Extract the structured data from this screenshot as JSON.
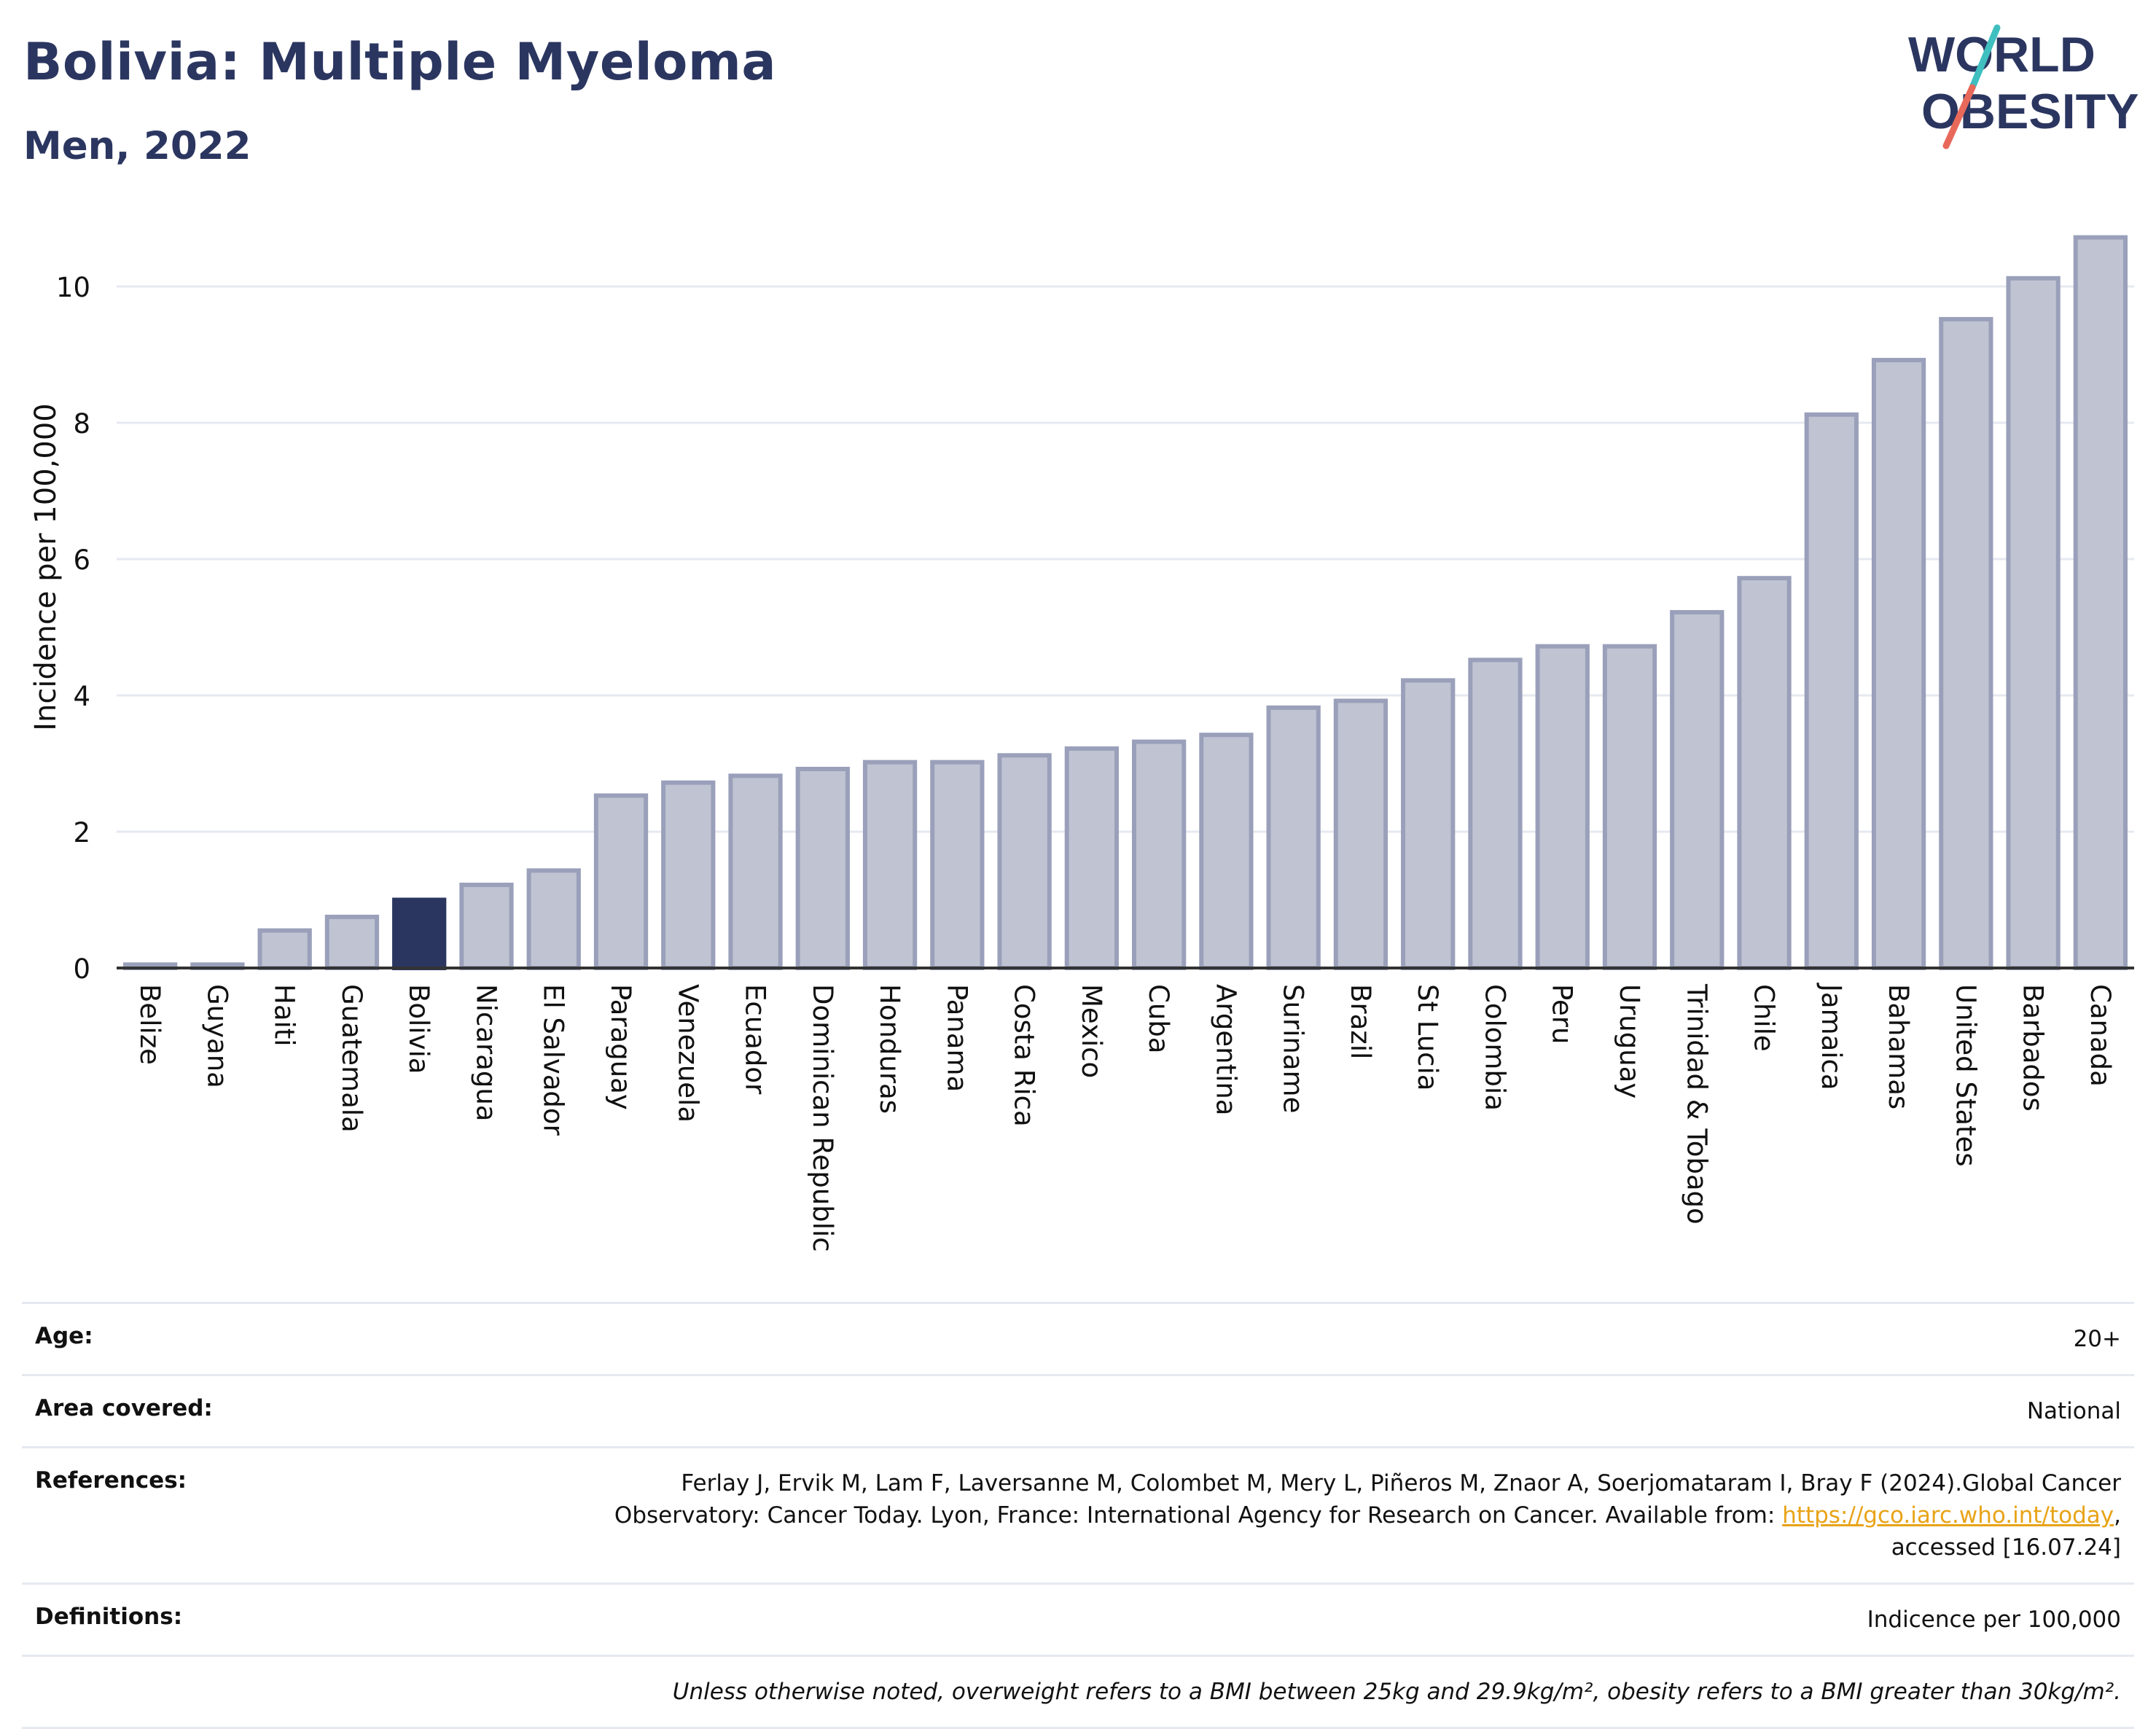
{
  "header": {
    "title": "Bolivia: Multiple Myeloma",
    "subtitle": "Men, 2022"
  },
  "logo": {
    "line1": "WORLD",
    "line2": "OBESITY",
    "colors": {
      "text": "#2b3660",
      "slash_top": "#3fbfbf",
      "slash_bottom": "#e8695a"
    }
  },
  "colors": {
    "highlight": "#2b3660",
    "bar_fill": "#c0c4d2",
    "bar_stroke": "#9aa0ba",
    "grid": "#e6e9f0",
    "axis": "#333333",
    "link": "#e8a317"
  },
  "chart_data": {
    "type": "bar",
    "ylabel": "Incidence per 100,000",
    "ylim": [
      0,
      11
    ],
    "yticks": [
      0,
      2,
      4,
      6,
      8,
      10
    ],
    "grid": true,
    "highlight": "Bolivia",
    "categories": [
      "Belize",
      "Guyana",
      "Haiti",
      "Guatemala",
      "Bolivia",
      "Nicaragua",
      "El Salvador",
      "Paraguay",
      "Venezuela",
      "Ecuador",
      "Dominican Republic",
      "Honduras",
      "Panama",
      "Costa Rica",
      "Mexico",
      "Cuba",
      "Argentina",
      "Suriname",
      "Brazil",
      "St Lucia",
      "Colombia",
      "Peru",
      "Uruguay",
      "Trinidad & Tobago",
      "Chile",
      "Jamaica",
      "Bahamas",
      "United States",
      "Barbados",
      "Canada"
    ],
    "values": [
      0.05,
      0.05,
      0.55,
      0.75,
      1.0,
      1.22,
      1.43,
      2.53,
      2.72,
      2.82,
      2.92,
      3.02,
      3.02,
      3.12,
      3.22,
      3.32,
      3.42,
      3.82,
      3.92,
      4.22,
      4.52,
      4.72,
      4.72,
      5.22,
      5.72,
      8.12,
      8.92,
      9.52,
      10.12,
      10.72
    ]
  },
  "info": {
    "age_label": "Age:",
    "age_value": "20+",
    "area_label": "Area covered:",
    "area_value": "National",
    "references_label": "References:",
    "references_line1": "Ferlay J, Ervik M, Lam F, Laversanne M, Colombet M, Mery L, Piñeros M, Znaor A, Soerjomataram I, Bray F (2024).Global Cancer",
    "references_line2": "Observatory: Cancer Today. Lyon, France: International Agency for Research on Cancer. Available from:",
    "references_link": "https://gco.iarc.who.int/today",
    "references_line3": "accessed [16.07.24]",
    "definitions_label": "Definitions:",
    "definitions_value": "Indicence per 100,000",
    "note": "Unless otherwise noted, overweight refers to a BMI between 25kg and 29.9kg/m², obesity refers to a BMI greater than 30kg/m²."
  }
}
